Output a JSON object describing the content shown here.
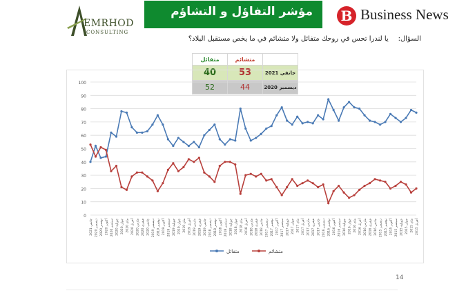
{
  "header": {
    "logo_left_name": "EMRHOD",
    "logo_left_sub": "CONSULTING",
    "title": "مؤشر التفاؤل و التشاؤم",
    "logo_right_text": "Business News",
    "logo_right_letter": "B"
  },
  "question": {
    "label": "السؤال:",
    "text": "يا لندرا تحس في روحك متفائل ولا متشائم في ما يخص مستقبل البلاد؟"
  },
  "summary_table": {
    "col_pessimist": "متشائم",
    "col_optimist": "متفائل",
    "rows": [
      {
        "label": "جانفي 2021",
        "pessimist": "53",
        "optimist": "40"
      },
      {
        "label": "ديسمبر 2020",
        "pessimist": "44",
        "optimist": "52"
      }
    ]
  },
  "colors": {
    "optimist": "#4a7ab5",
    "pessimist": "#b8403c",
    "title_bg": "#0f8a2f",
    "table_row1": "#d8e7b9",
    "table_row2": "#c8c8c8"
  },
  "page_number": "14",
  "chart_data": {
    "type": "line",
    "title": "",
    "xlabel": "",
    "ylabel": "",
    "ylim": [
      0,
      100
    ],
    "yticks": [
      0,
      10,
      20,
      30,
      40,
      50,
      60,
      70,
      80,
      90,
      100
    ],
    "grid": true,
    "legend_position": "bottom",
    "categories": [
      "جانفي 2021",
      "ديسمبر 2020",
      "نوفمبر 2020",
      "أكتوبر 2020",
      "سبتمبر 2020",
      "جويلية 2020",
      "جوان 2020",
      "ماي 2020",
      "أفريل 2020",
      "مارس 2020",
      "فيفري 2020",
      "جانفي 2020",
      "ديسمبر 2019",
      "نوفمبر 2019",
      "أكتوبر 2019",
      "سبتمبر 2019",
      "جويلية 2019",
      "جوان 2019",
      "ماي 2019",
      "أفريل 2019",
      "مارس 2019",
      "فيفري 2019",
      "جانفي 2019",
      "ديسمبر 2018",
      "نوفمبر 2018",
      "أكتوبر 2018",
      "سبتمبر 2018",
      "جويلية 2018",
      "جوان 2018",
      "ماي 2018",
      "أفريل 2018",
      "مارس 2018",
      "فيفري 2018",
      "جانفي 2018",
      "ديسمبر 2017",
      "نوفمبر 2017",
      "أكتوبر 2017",
      "سبتمبر 2017",
      "جويلية 2017",
      "جوان 2017",
      "ماي 2017",
      "أفريل 2017",
      "مارس 2017",
      "فيفري 2017",
      "جانفي 2017",
      "ديسمبر 2016",
      "نوفمبر 2016",
      "أكتوبر 2016",
      "سبتمبر 2016",
      "جويلية 2016",
      "جوان 2016",
      "ماي 2016",
      "أفريل 2016",
      "مارس 2016",
      "فيفري 2016",
      "جانفي 2016",
      "ديسمبر 2015",
      "نوفمبر 2015",
      "أكتوبر 2015",
      "سبتمبر 2015",
      "جويلية 2015",
      "جوان 2015",
      "ماي 2015",
      "أفريل 2015"
    ],
    "series": [
      {
        "name": "متفائل",
        "color": "#4a7ab5",
        "values": [
          40,
          52,
          43,
          44,
          62,
          59,
          78,
          77,
          66,
          62,
          62,
          63,
          68,
          75,
          68,
          57,
          52,
          58,
          55,
          52,
          55,
          51,
          60,
          64,
          68,
          57,
          53,
          57,
          56,
          80,
          65,
          56,
          58,
          61,
          65,
          67,
          75,
          81,
          71,
          68,
          74,
          69,
          70,
          69,
          75,
          72,
          87,
          79,
          71,
          81,
          85,
          81,
          80,
          75,
          71,
          70,
          68,
          70,
          76,
          73,
          70,
          73,
          79,
          77
        ]
      },
      {
        "name": "متشائم",
        "color": "#b8403c",
        "values": [
          53,
          44,
          51,
          49,
          33,
          37,
          21,
          19,
          29,
          32,
          32,
          29,
          26,
          18,
          24,
          34,
          39,
          33,
          36,
          42,
          40,
          43,
          32,
          29,
          25,
          37,
          40,
          40,
          38,
          16,
          30,
          31,
          29,
          31,
          26,
          27,
          21,
          15,
          21,
          27,
          22,
          24,
          26,
          24,
          21,
          23,
          9,
          18,
          22,
          17,
          13,
          15,
          19,
          22,
          24,
          27,
          26,
          25,
          20,
          22,
          25,
          23,
          17,
          20
        ]
      }
    ]
  }
}
